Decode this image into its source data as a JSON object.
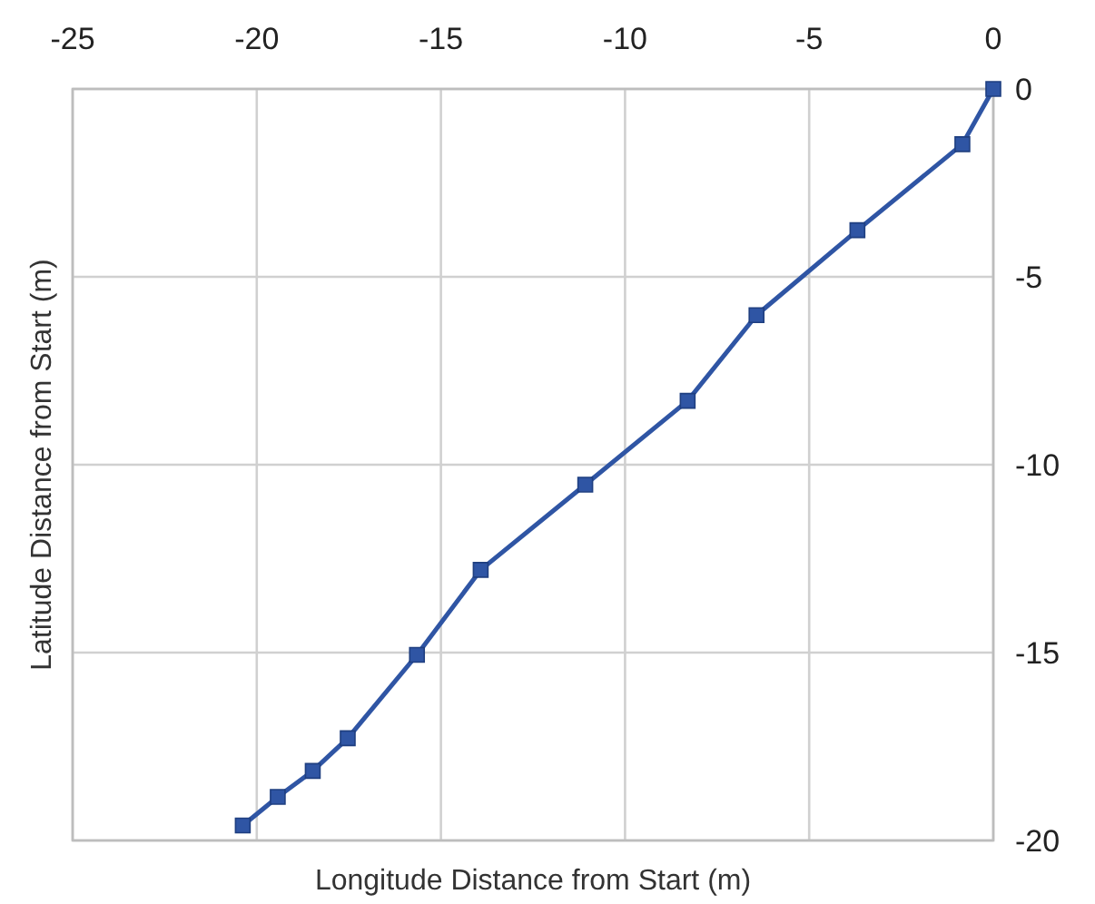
{
  "chart_data": {
    "type": "line",
    "xlabel": "Longitude Distance from Start (m)",
    "ylabel": "Latitude Distance from Start (m)",
    "xlim": [
      -25,
      0
    ],
    "xticks": [
      -25,
      -20,
      -15,
      -10,
      -5,
      0
    ],
    "ylim": [
      -20,
      0
    ],
    "yticks": [
      0,
      -5,
      -10,
      -15,
      -20
    ],
    "grid": true,
    "marker": "square",
    "line_style": "solid",
    "series": [
      {
        "color": "#2f55a4",
        "x": [
          0,
          -0.84,
          -3.69,
          -6.43,
          -8.3,
          -11.08,
          -13.92,
          -15.65,
          -17.53,
          -18.48,
          -19.43,
          -20.38
        ],
        "values": [
          0,
          -1.47,
          -3.76,
          -6.02,
          -8.3,
          -10.53,
          -12.8,
          -15.06,
          -17.28,
          -18.15,
          -18.84,
          -19.6
        ]
      }
    ]
  }
}
